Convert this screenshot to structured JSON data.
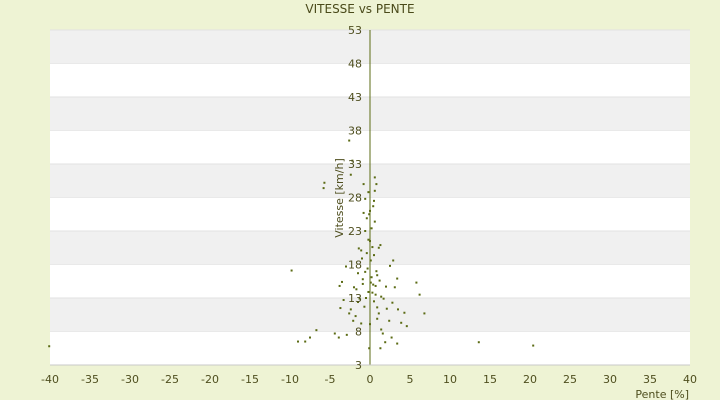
{
  "chart_data": {
    "type": "scatter",
    "title": "VITESSE vs PENTE",
    "xlabel": "Pente [%]",
    "ylabel": "Vitesse [km/h]",
    "xlim": [
      -40,
      40
    ],
    "ylim": [
      3,
      53
    ],
    "xticks": [
      -40,
      -35,
      -30,
      -25,
      -20,
      -15,
      -10,
      -5,
      0,
      5,
      10,
      15,
      20,
      25,
      30,
      35,
      40
    ],
    "yticks": [
      3,
      8,
      13,
      18,
      23,
      28,
      33,
      38,
      43,
      48,
      53
    ],
    "grid": "horizontal bands",
    "colors": {
      "point": "#5b6b14",
      "axis": "#5b6b14",
      "band": "#f0f0f0",
      "plot_bg": "#ffffff",
      "page_bg": "#eef3d4"
    },
    "series": [
      {
        "points": [
          [
            -40.1,
            5.8
          ],
          [
            -9.8,
            17.1
          ],
          [
            -9.0,
            6.5
          ],
          [
            -8.1,
            6.5
          ],
          [
            -7.5,
            7.1
          ],
          [
            -6.7,
            8.2
          ],
          [
            -5.7,
            30.2
          ],
          [
            -5.8,
            29.4
          ],
          [
            -4.4,
            7.7
          ],
          [
            -3.9,
            7.1
          ],
          [
            -3.8,
            14.8
          ],
          [
            -3.7,
            11.5
          ],
          [
            -3.5,
            15.4
          ],
          [
            -3.3,
            12.7
          ],
          [
            -3.0,
            17.7
          ],
          [
            -2.6,
            36.5
          ],
          [
            -2.4,
            31.4
          ],
          [
            -2.2,
            33.5
          ],
          [
            -2.4,
            11.3
          ],
          [
            -2.1,
            9.6
          ],
          [
            -1.8,
            10.3
          ],
          [
            -1.5,
            12.4
          ],
          [
            -1.7,
            14.3
          ],
          [
            -1.3,
            12.9
          ],
          [
            -1.1,
            9.2
          ],
          [
            -0.9,
            15.8
          ],
          [
            -0.7,
            11.7
          ],
          [
            -0.5,
            13.0
          ],
          [
            -0.3,
            17.4
          ],
          [
            -0.4,
            19.7
          ],
          [
            -0.2,
            21.7
          ],
          [
            -0.6,
            23.0
          ],
          [
            -0.4,
            24.9
          ],
          [
            -0.6,
            27.8
          ],
          [
            -0.8,
            30.0
          ],
          [
            -0.2,
            28.8
          ],
          [
            0.0,
            26.0
          ],
          [
            0.2,
            23.4
          ],
          [
            0.5,
            27.5
          ],
          [
            0.6,
            29.0
          ],
          [
            0.8,
            30.0
          ],
          [
            0.6,
            31.0
          ],
          [
            0.3,
            20.6
          ],
          [
            0.5,
            19.4
          ],
          [
            0.8,
            17.0
          ],
          [
            0.2,
            16.1
          ],
          [
            0.4,
            15.0
          ],
          [
            0.7,
            14.8
          ],
          [
            0.9,
            16.4
          ],
          [
            1.2,
            15.6
          ],
          [
            0.1,
            18.6
          ],
          [
            0.3,
            13.8
          ],
          [
            0.5,
            12.5
          ],
          [
            0.9,
            11.6
          ],
          [
            1.4,
            13.2
          ],
          [
            1.1,
            10.7
          ],
          [
            1.7,
            12.9
          ],
          [
            2.1,
            11.4
          ],
          [
            2.4,
            9.6
          ],
          [
            2.8,
            12.3
          ],
          [
            3.1,
            14.6
          ],
          [
            3.5,
            11.3
          ],
          [
            3.9,
            9.3
          ],
          [
            4.3,
            10.8
          ],
          [
            4.6,
            8.8
          ],
          [
            2.5,
            17.8
          ],
          [
            2.9,
            18.6
          ],
          [
            3.4,
            15.9
          ],
          [
            -0.9,
            15.1
          ],
          [
            -1.5,
            16.7
          ],
          [
            -2.0,
            14.6
          ],
          [
            -2.6,
            10.7
          ],
          [
            1.1,
            20.5
          ],
          [
            0.0,
            21.5
          ],
          [
            -1.1,
            20.1
          ],
          [
            -0.8,
            25.7
          ],
          [
            0.4,
            26.7
          ],
          [
            -0.1,
            25.5
          ],
          [
            0.6,
            24.4
          ],
          [
            -1.0,
            18.9
          ],
          [
            1.3,
            20.9
          ],
          [
            -1.4,
            20.4
          ],
          [
            -0.6,
            16.9
          ],
          [
            0.1,
            15.3
          ],
          [
            0.7,
            13.5
          ],
          [
            1.4,
            8.3
          ],
          [
            1.9,
            6.4
          ],
          [
            1.3,
            5.5
          ],
          [
            2.7,
            7.1
          ],
          [
            3.4,
            6.2
          ],
          [
            5.8,
            15.3
          ],
          [
            6.2,
            13.5
          ],
          [
            6.8,
            10.7
          ],
          [
            13.6,
            6.4
          ],
          [
            20.4,
            5.9
          ],
          [
            -0.1,
            5.5
          ],
          [
            -2.9,
            7.5
          ],
          [
            1.6,
            7.7
          ],
          [
            0.9,
            9.9
          ],
          [
            -0.2,
            13.9
          ],
          [
            0.0,
            9.1
          ],
          [
            2.0,
            14.7
          ]
        ]
      }
    ]
  }
}
